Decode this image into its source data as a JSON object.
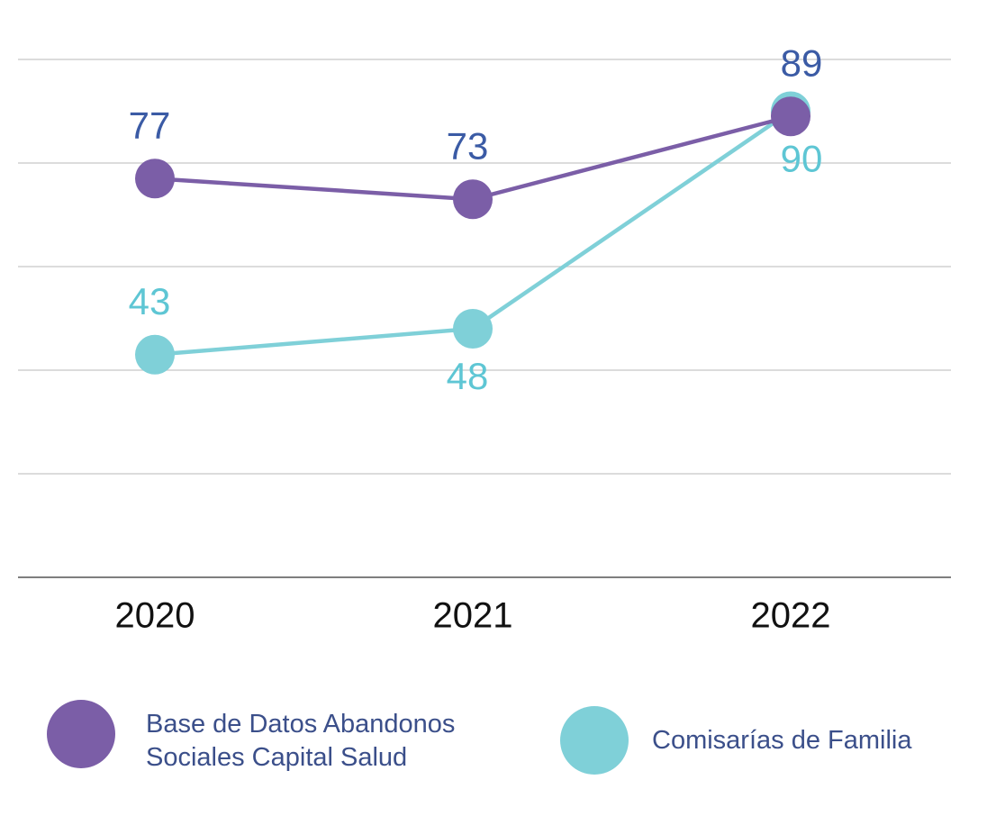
{
  "chart_data": {
    "type": "line",
    "categories": [
      "2020",
      "2021",
      "2022"
    ],
    "series": [
      {
        "name": "Comisarías de Familia",
        "color": "#7fd0d8",
        "label_color": "#5ec6d4",
        "values": [
          43,
          48,
          90
        ]
      },
      {
        "name": "Base de Datos Abandonos Sociales Capital Salud",
        "color": "#7b5ea7",
        "label_color": "#3b5ba5",
        "values": [
          77,
          73,
          89
        ]
      }
    ],
    "ylim": [
      0,
      100
    ],
    "yticks": [
      0,
      20,
      40,
      60,
      80,
      100
    ],
    "grid": true,
    "legend": "bottom"
  }
}
